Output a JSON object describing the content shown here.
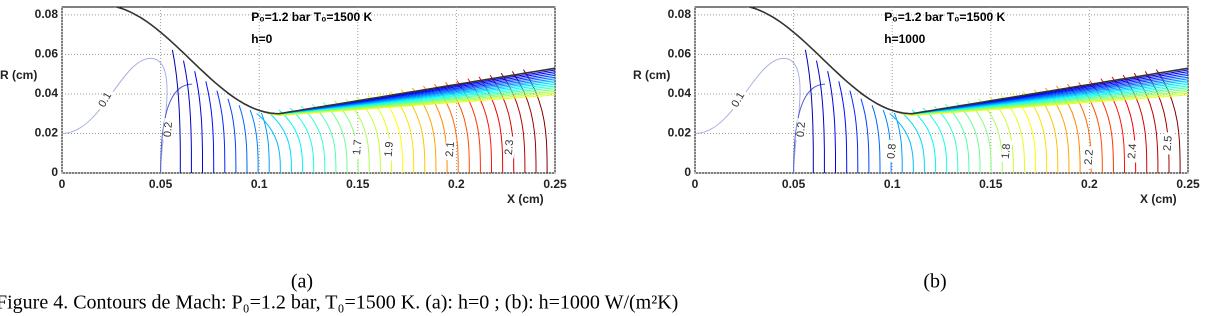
{
  "figures": [
    {
      "annotation": [
        "P₀=1.2 bar T₀=1500 K",
        "h=0"
      ],
      "xlabel": "X (cm)",
      "ylabel": "R (cm)",
      "xlim": [
        0,
        0.25
      ],
      "ylim": [
        0,
        0.084
      ],
      "xticks": [
        0,
        0.05,
        0.1,
        0.15,
        0.2,
        0.25
      ],
      "yticks": [
        0,
        0.02,
        0.04,
        0.06,
        0.08
      ],
      "contour_labels": [
        0.1,
        0.2,
        1.7,
        1.9,
        2.1,
        2.3
      ],
      "panel_label": "(a)"
    },
    {
      "annotation": [
        "P₀=1.2 bar T₀=1500 K",
        "h=1000"
      ],
      "xlabel": "X (cm)",
      "ylabel": "R (cm)",
      "xlim": [
        0,
        0.25
      ],
      "ylim": [
        0,
        0.084
      ],
      "xticks": [
        0,
        0.05,
        0.1,
        0.15,
        0.2,
        0.25
      ],
      "yticks": [
        0,
        0.02,
        0.04,
        0.06,
        0.08
      ],
      "contour_labels": [
        0.1,
        0.2,
        0.8,
        1.8,
        2.2,
        2.4,
        2.5
      ],
      "panel_label": "(b)"
    }
  ],
  "caption": "Figure 4. Contours de Mach: P₀=1.2 bar, T₀=1500 K. (a): h=0 ; (b): h=1000 W/(m²K)"
}
